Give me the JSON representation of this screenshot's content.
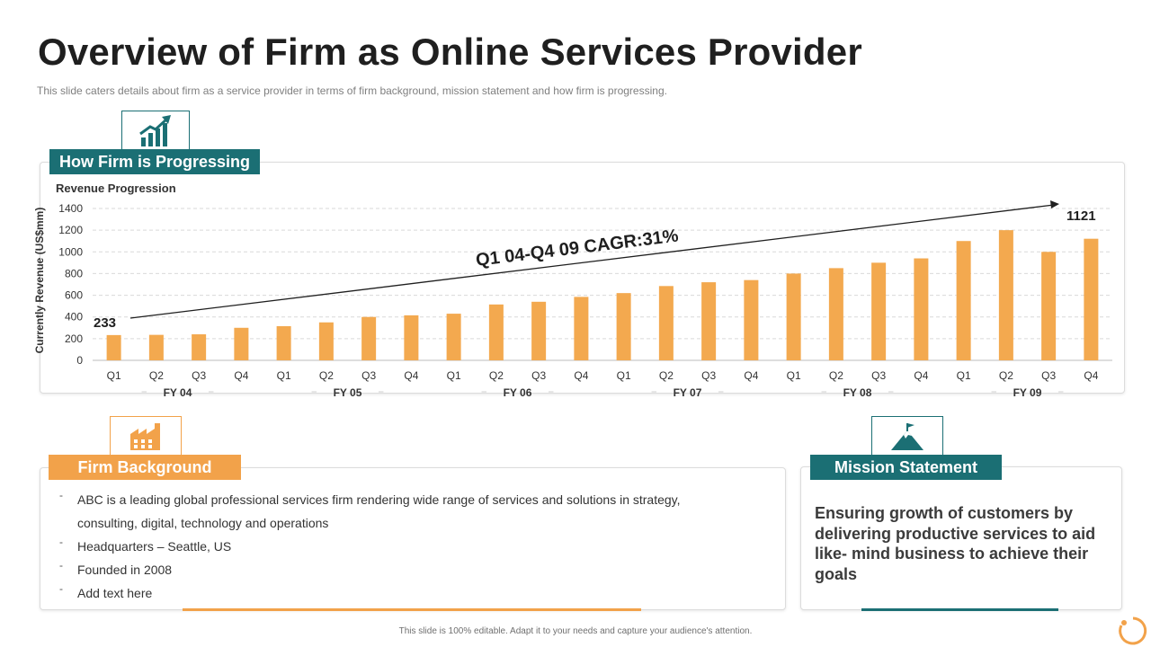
{
  "page": {
    "title": "Overview of Firm as Online Services Provider",
    "subtitle": "This slide caters details about firm as a service provider  in terms of firm background,  mission statement and how firm is progressing.",
    "footer": "This slide is 100% editable.  Adapt it to your needs and capture your audience's attention."
  },
  "colors": {
    "teal": "#1b6f74",
    "orange": "#f2a24a",
    "bar": "#f3a94f"
  },
  "progress": {
    "label": "How Firm is Progressing",
    "icon": "growth-chart-icon"
  },
  "chart_data": {
    "type": "bar",
    "title": "Revenue Progression",
    "ylabel": "Currently Revenue (US$mm)",
    "xlabel": "",
    "ylim": [
      0,
      1400
    ],
    "yticks": [
      0,
      200,
      400,
      600,
      800,
      1000,
      1200,
      1400
    ],
    "grid": true,
    "categories": [
      "Q1",
      "Q2",
      "Q3",
      "Q4",
      "Q1",
      "Q2",
      "Q3",
      "Q4",
      "Q1",
      "Q2",
      "Q3",
      "Q4",
      "Q1",
      "Q2",
      "Q3",
      "Q4",
      "Q1",
      "Q2",
      "Q3",
      "Q4",
      "Q1",
      "Q2",
      "Q3",
      "Q4"
    ],
    "groups": [
      "FY 04",
      "FY 05",
      "FY 06",
      "FY 07",
      "FY 08",
      "FY 09"
    ],
    "values": [
      233,
      235,
      240,
      300,
      315,
      350,
      400,
      415,
      430,
      515,
      540,
      585,
      620,
      685,
      720,
      740,
      800,
      850,
      900,
      940,
      1100,
      1200,
      1000,
      1121
    ],
    "annotations": {
      "start_label": "233",
      "end_label": "1121",
      "cagr_text": "Q1 04-Q4 09 CAGR:31%"
    }
  },
  "background": {
    "label": "Firm Background",
    "icon": "factory-icon",
    "items": [
      "ABC is a leading global professional services firm rendering wide range of services and solutions in strategy, consulting, digital, technology and operations",
      "Headquarters – Seattle, US",
      "Founded in 2008",
      "Add text here"
    ]
  },
  "mission": {
    "label": "Mission Statement",
    "icon": "mountain-flag-icon",
    "text": "Ensuring growth of customers by delivering productive services to aid like- mind business to achieve their goals"
  }
}
